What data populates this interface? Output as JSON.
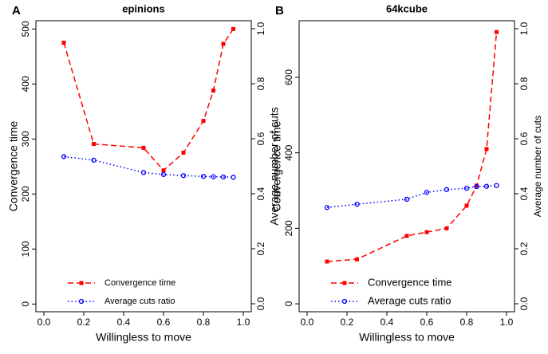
{
  "chart_data": [
    {
      "type": "line",
      "panel_label": "A",
      "title": "epinions",
      "xlabel": "Willingless to move",
      "ylabel": "Convergence time",
      "y2label": "Average number of cuts",
      "x": [
        0.1,
        0.25,
        0.5,
        0.6,
        0.7,
        0.8,
        0.85,
        0.9,
        0.95
      ],
      "xlim": [
        -0.04,
        1.04
      ],
      "xticks": [
        {
          "value": 0,
          "label": "0.0"
        },
        {
          "value": 0.2,
          "label": "0.2"
        },
        {
          "value": 0.4,
          "label": "0.4"
        },
        {
          "value": 0.6,
          "label": "0.6"
        },
        {
          "value": 0.8,
          "label": "0.8"
        },
        {
          "value": 1,
          "label": "1.0"
        }
      ],
      "ylim": [
        -14,
        515
      ],
      "yticks": [
        0,
        100,
        200,
        300,
        400,
        500
      ],
      "y2lim": [
        -0.029,
        1.029
      ],
      "y2ticks": [
        {
          "value": 0,
          "label": "0.0"
        },
        {
          "value": 0.2,
          "label": "0.2"
        },
        {
          "value": 0.4,
          "label": "0.4"
        },
        {
          "value": 0.6,
          "label": "0.6"
        },
        {
          "value": 0.8,
          "label": "0.8"
        },
        {
          "value": 1,
          "label": "1.0"
        }
      ],
      "series": [
        {
          "name": "Convergence time",
          "color": "#ff0000",
          "marker": "square",
          "dash": "dashed",
          "values": [
            475,
            291,
            284,
            243,
            275,
            333,
            388,
            473,
            500
          ]
        },
        {
          "name": "Average cuts ratio",
          "color": "#0000ff",
          "marker": "circle",
          "dash": "dotted",
          "axis": "y2",
          "values": [
            0.535,
            0.522,
            0.477,
            0.47,
            0.466,
            0.463,
            0.462,
            0.461,
            0.46
          ]
        }
      ]
    },
    {
      "type": "line",
      "panel_label": "B",
      "title": "64kcube",
      "xlabel": "Willingless to move",
      "ylabel": "Convergence time",
      "y2label": "Average number of cuts",
      "x": [
        0.1,
        0.25,
        0.5,
        0.6,
        0.7,
        0.8,
        0.85,
        0.9,
        0.95
      ],
      "xlim": [
        -0.04,
        1.04
      ],
      "xticks": [
        {
          "value": 0,
          "label": "0.0"
        },
        {
          "value": 0.2,
          "label": "0.2"
        },
        {
          "value": 0.4,
          "label": "0.4"
        },
        {
          "value": 0.6,
          "label": "0.6"
        },
        {
          "value": 0.8,
          "label": "0.8"
        },
        {
          "value": 1,
          "label": "1.0"
        }
      ],
      "ylim": [
        -21,
        750
      ],
      "yticks": [
        0,
        200,
        400,
        600
      ],
      "y2lim": [
        -0.029,
        1.029
      ],
      "y2ticks": [
        {
          "value": 0,
          "label": "0.0"
        },
        {
          "value": 0.2,
          "label": "0.2"
        },
        {
          "value": 0.4,
          "label": "0.4"
        },
        {
          "value": 0.6,
          "label": "0.6"
        },
        {
          "value": 0.8,
          "label": "0.8"
        },
        {
          "value": 1,
          "label": "1.0"
        }
      ],
      "series": [
        {
          "name": "Convergence time",
          "color": "#ff0000",
          "marker": "square",
          "dash": "dashed",
          "values": [
            112,
            118,
            180,
            190,
            200,
            260,
            313,
            410,
            720
          ]
        },
        {
          "name": "Average cuts ratio",
          "color": "#0000ff",
          "marker": "circle",
          "dash": "dotted",
          "axis": "y2",
          "values": [
            0.35,
            0.362,
            0.38,
            0.405,
            0.415,
            0.42,
            0.426,
            0.427,
            0.43
          ]
        }
      ]
    }
  ]
}
